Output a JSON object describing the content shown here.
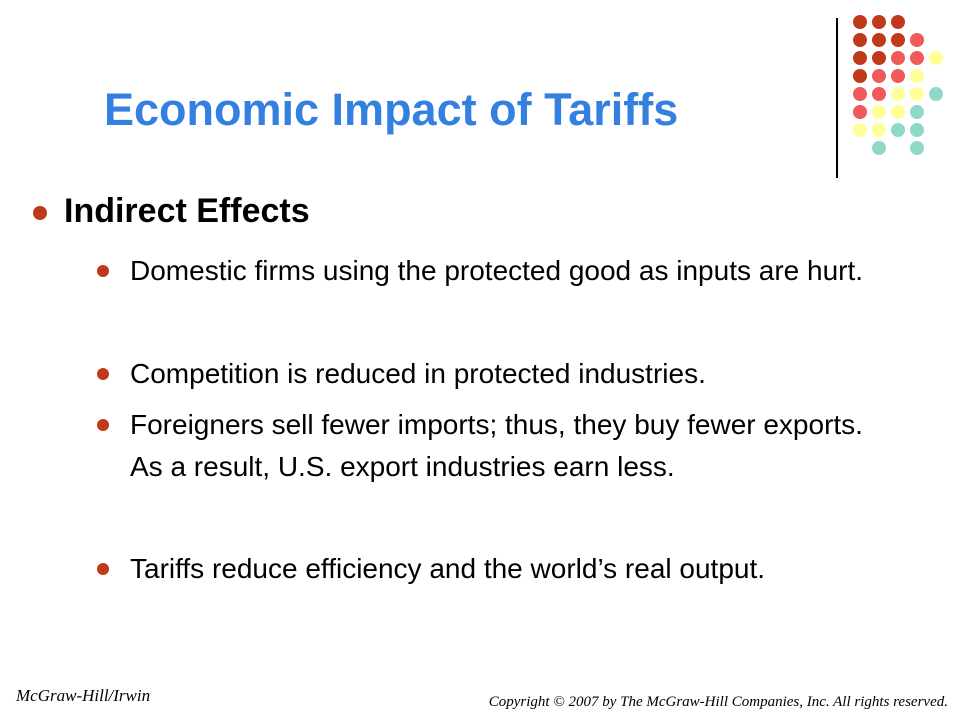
{
  "slide": {
    "title": "Economic Impact of Tariffs",
    "heading": "Indirect Effects",
    "bullets": [
      "Domestic firms using the protected good as inputs are hurt.",
      "Competition is reduced in protected industries.",
      "Foreigners sell fewer imports; thus, they buy fewer exports.  As a result, U.S. export industries earn less.",
      "Tariffs reduce efficiency and the world’s real output."
    ]
  },
  "footer": {
    "publisher": "McGraw-Hill/Irwin",
    "copyright": "Copyright © 2007 by The McGraw-Hill Companies, Inc. All rights reserved."
  },
  "colors": {
    "title": "#3380e0",
    "bullet": "#c0391b",
    "dot_dark": "#c0391b",
    "dot_red": "#f05a5a",
    "dot_yellow": "#ffff99",
    "dot_teal": "#8fd8c8"
  }
}
